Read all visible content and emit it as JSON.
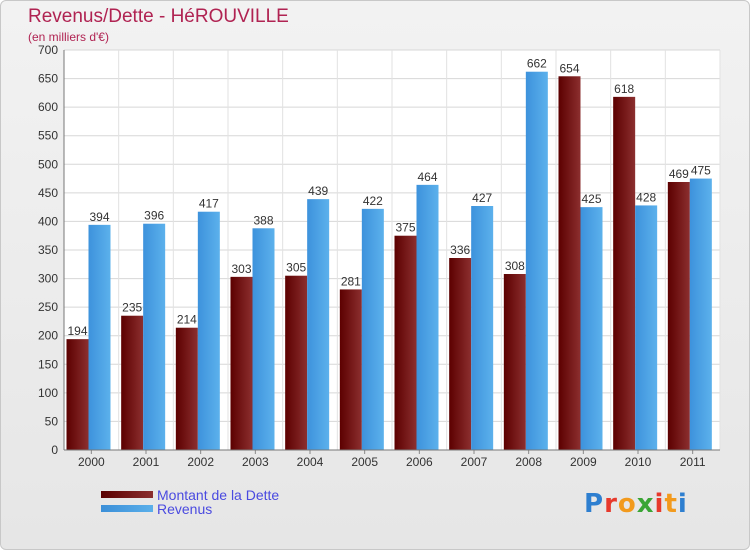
{
  "title": "Revenus/Dette - HéROUVILLE",
  "subtitle": "(en milliers d'€)",
  "chart_data": {
    "type": "bar",
    "categories": [
      "2000",
      "2001",
      "2002",
      "2003",
      "2004",
      "2005",
      "2006",
      "2007",
      "2008",
      "2009",
      "2010",
      "2011"
    ],
    "series": [
      {
        "name": "Montant de la Dette",
        "values": [
          194,
          235,
          214,
          303,
          305,
          281,
          375,
          336,
          308,
          654,
          618,
          469
        ],
        "color": "#7a1e1e"
      },
      {
        "name": "Revenus",
        "values": [
          394,
          396,
          417,
          388,
          439,
          422,
          464,
          427,
          662,
          425,
          428,
          475
        ],
        "color": "#4aa3e6"
      }
    ],
    "yticks": [
      "0",
      "50",
      "100",
      "150",
      "200",
      "250",
      "300",
      "350",
      "400",
      "450",
      "500",
      "550",
      "600",
      "650",
      "700"
    ],
    "ylim": [
      0,
      700
    ],
    "grid": true,
    "legend": "bottom-left"
  },
  "legend": {
    "debt_label": "Montant de la Dette",
    "revenue_label": "Revenus"
  },
  "logo": {
    "text": "Proxiti",
    "colors": [
      "#2e7fd0",
      "#e7392c",
      "#f29a1d",
      "#3aa535",
      "#e7392c",
      "#f29a1d",
      "#2e7fd0"
    ]
  }
}
